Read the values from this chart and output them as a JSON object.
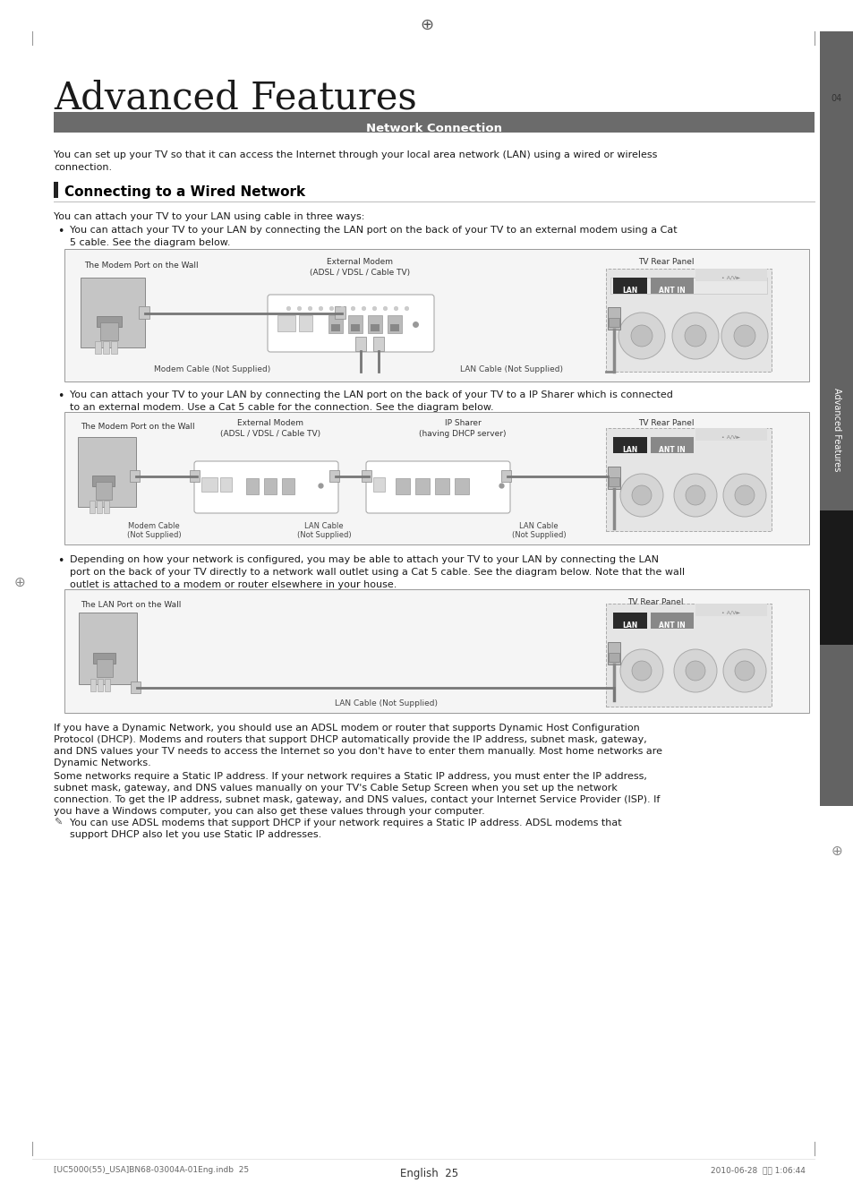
{
  "page_bg": "#ffffff",
  "title": "Advanced Features",
  "title_fontsize": 30,
  "title_color": "#1a1a1a",
  "header_bar_color": "#6b6b6b",
  "header_text": "Network Connection",
  "header_text_color": "#ffffff",
  "header_fontsize": 9.5,
  "section_title": "Connecting to a Wired Network",
  "section_title_fontsize": 11,
  "section_title_color": "#000000",
  "section_bar_color": "#222222",
  "body_fontsize": 8.0,
  "body_color": "#1a1a1a",
  "intro_text_l1": "You can set up your TV so that it can access the Internet through your local area network (LAN) using a wired or wireless",
  "intro_text_l2": "connection.",
  "wired_intro": "You can attach your TV to your LAN using cable in three ways:",
  "bullet1_line1": "You can attach your TV to your LAN by connecting the LAN port on the back of your TV to an external modem using a Cat",
  "bullet1_line2": "5 cable. See the diagram below.",
  "bullet2_line1": "You can attach your TV to your LAN by connecting the LAN port on the back of your TV to a IP Sharer which is connected",
  "bullet2_line2": "to an external modem. Use a Cat 5 cable for the connection. See the diagram below.",
  "bullet3_line1": "Depending on how your network is configured, you may be able to attach your TV to your LAN by connecting the LAN",
  "bullet3_line2": "port on the back of your TV directly to a network wall outlet using a Cat 5 cable. See the diagram below. Note that the wall",
  "bullet3_line3": "outlet is attached to a modem or router elsewhere in your house.",
  "dhcp_para1_line1": "If you have a Dynamic Network, you should use an ADSL modem or router that supports Dynamic Host Configuration",
  "dhcp_para1_line2": "Protocol (DHCP). Modems and routers that support DHCP automatically provide the IP address, subnet mask, gateway,",
  "dhcp_para1_line3": "and DNS values your TV needs to access the Internet so you don't have to enter them manually. Most home networks are",
  "dhcp_para1_line4": "Dynamic Networks.",
  "dhcp_para2_line1": "Some networks require a Static IP address. If your network requires a Static IP address, you must enter the IP address,",
  "dhcp_para2_line2": "subnet mask, gateway, and DNS values manually on your TV's Cable Setup Screen when you set up the network",
  "dhcp_para2_line3": "connection. To get the IP address, subnet mask, gateway, and DNS values, contact your Internet Service Provider (ISP). If",
  "dhcp_para2_line4": "you have a Windows computer, you can also get these values through your computer.",
  "note_line1": "You can use ADSL modems that support DHCP if your network requires a Static IP address. ADSL modems that",
  "note_line2": "support DHCP also let you use Static IP addresses.",
  "diagram1_label_wall": "The Modem Port on the Wall",
  "diagram1_label_modem": "External Modem\n(ADSL / VDSL / Cable TV)",
  "diagram1_label_tv": "TV Rear Panel",
  "diagram1_cable1": "Modem Cable (Not Supplied)",
  "diagram1_cable2": "LAN Cable (Not Supplied)",
  "diagram2_label_wall": "The Modem Port on the Wall",
  "diagram2_label_modem": "External Modem\n(ADSL / VDSL / Cable TV)",
  "diagram2_label_ip": "IP Sharer\n(having DHCP server)",
  "diagram2_label_tv": "TV Rear Panel",
  "diagram3_label_wall": "The LAN Port on the Wall",
  "diagram3_label_tv": "TV Rear Panel",
  "diagram3_cable": "LAN Cable (Not Supplied)",
  "diagram_bg": "#f5f5f5",
  "diagram_border": "#999999",
  "diagram_label_fontsize": 6.5,
  "diagram_cable_fontsize": 6.5,
  "sidebar_dark": "#1a1a1a",
  "sidebar_mid": "#5a5a5a",
  "footer_left": "[UC5000(55)_USA]BN68-03004A-01Eng.indb  25",
  "footer_right": "2010-06-28  오후 1:06:44",
  "footer_fontsize": 6.5,
  "page_num": "25"
}
